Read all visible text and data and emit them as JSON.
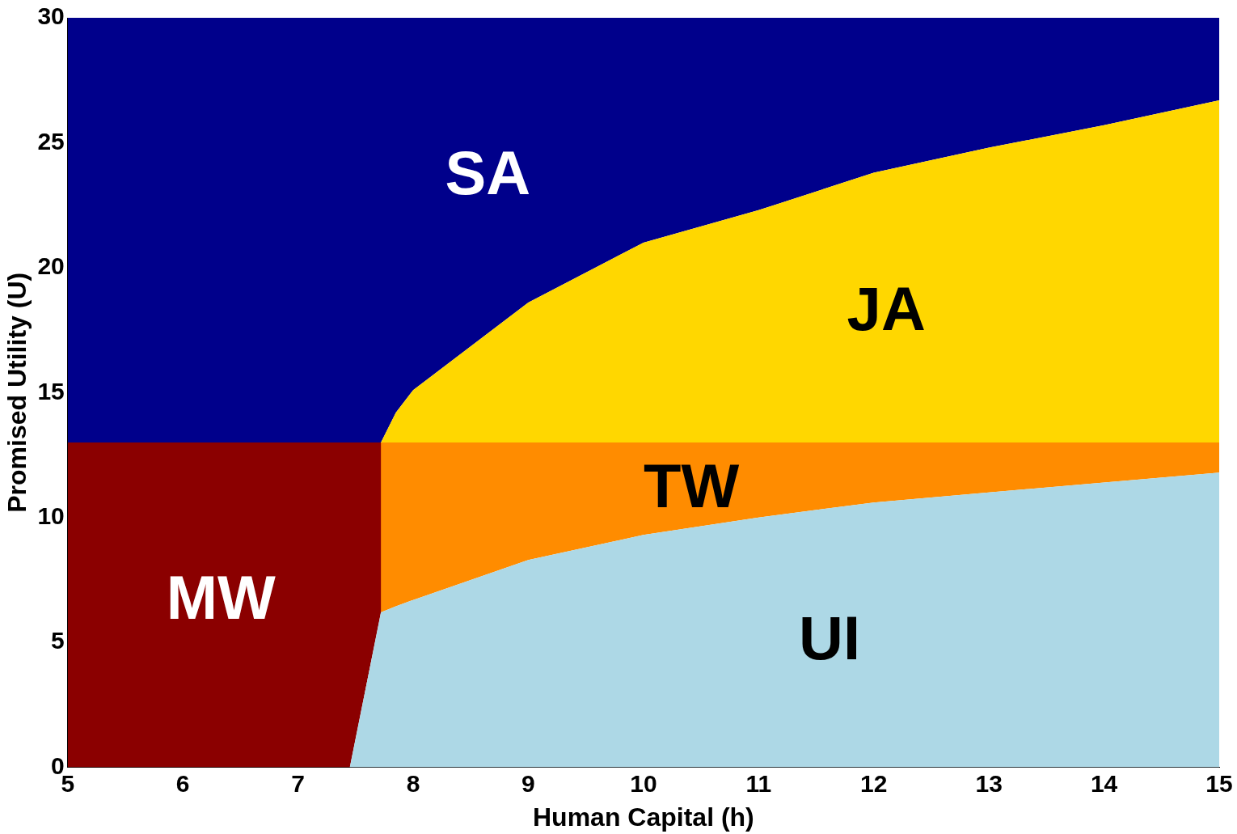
{
  "chart_data": {
    "type": "area",
    "stacked": true,
    "xlabel": "Human Capital (h)",
    "ylabel": "Promised Utility (U)",
    "xlim": [
      5,
      15
    ],
    "ylim": [
      0,
      30
    ],
    "xticks": [
      5,
      6,
      7,
      8,
      9,
      10,
      11,
      12,
      13,
      14,
      15
    ],
    "yticks": [
      0,
      5,
      10,
      15,
      20,
      25,
      30
    ],
    "grid": false,
    "legend": false,
    "x": [
      5,
      7.45,
      7.72,
      7.72,
      7.85,
      8,
      9,
      10,
      11,
      12,
      13,
      14,
      15
    ],
    "series": [
      {
        "name": "UI",
        "color": "#add8e6",
        "values": [
          0,
          0,
          6.2,
          6.2,
          6.45,
          6.7,
          8.3,
          9.3,
          10,
          10.6,
          11,
          11.4,
          11.8
        ]
      },
      {
        "name": "MW",
        "color": "#8b0000",
        "values": [
          13,
          13,
          6.8,
          0,
          0,
          0,
          0,
          0,
          0,
          0,
          0,
          0,
          0
        ]
      },
      {
        "name": "TW",
        "color": "#ff8c00",
        "values": [
          0,
          0,
          0,
          6.8,
          6.55,
          6.3,
          4.7,
          3.7,
          3,
          2.4,
          2,
          1.6,
          1.2
        ]
      },
      {
        "name": "JA",
        "color": "#ffd700",
        "values": [
          0,
          0,
          0,
          0,
          1.2,
          2.1,
          5.6,
          8,
          9.3,
          10.8,
          11.8,
          12.7,
          13.7
        ]
      },
      {
        "name": "SA",
        "color": "#00008b",
        "values": [
          17,
          17,
          17,
          17,
          15.8,
          14.9,
          11.4,
          9,
          7.7,
          6.2,
          5.2,
          4.3,
          3.3
        ]
      }
    ]
  }
}
